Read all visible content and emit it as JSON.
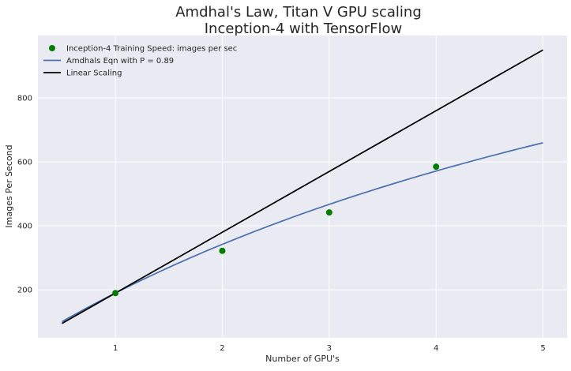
{
  "chart_data": {
    "type": "line",
    "title": "Amdhal's Law, Titan V GPU scaling",
    "subtitle": "Inception-4 with TensorFlow",
    "xlabel": "Number of GPU's",
    "ylabel": "Images Per Second",
    "xlim": [
      0.275,
      5.225
    ],
    "ylim": [
      50,
      995
    ],
    "xticks": [
      1,
      2,
      3,
      4,
      5
    ],
    "yticks": [
      200,
      400,
      600,
      800
    ],
    "grid": true,
    "legend_position": "top-left",
    "background_color": "#eaeaf2",
    "grid_color": "#ffffff",
    "series": [
      {
        "name": "Inception-4 Training Speed: images per sec",
        "kind": "scatter",
        "color": "#007f00",
        "x": [
          1,
          2,
          3,
          4
        ],
        "y": [
          190,
          322,
          442,
          585
        ]
      },
      {
        "name": "Amdhals Eqn with P = 0.89",
        "kind": "line",
        "color": "#4c72b0",
        "function": "amdahl",
        "p": 0.89,
        "base": 190,
        "x_range": [
          0.5,
          5
        ]
      },
      {
        "name": "Linear Scaling",
        "kind": "line",
        "color": "#000000",
        "x": [
          0.5,
          5
        ],
        "y": [
          95,
          950
        ]
      }
    ]
  }
}
